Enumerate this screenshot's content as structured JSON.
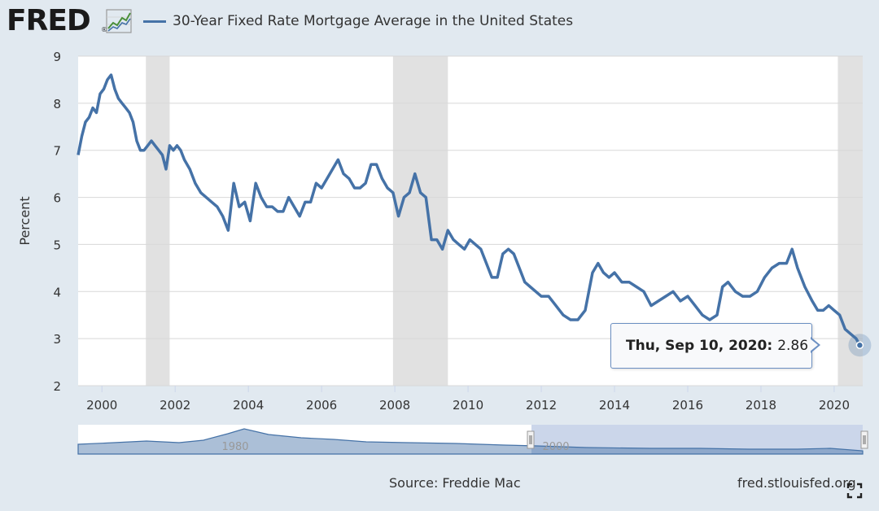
{
  "header": {
    "logo_text": "FRED",
    "logo_reg": "®",
    "legend_label": "30-Year Fixed Rate Mortgage Average in the United States"
  },
  "colors": {
    "series": "#4572a7",
    "recession": "#e1e1e1",
    "background": "#e1e9f0",
    "plot_bg": "#ffffff",
    "navigator_fill": "#b9c8e3"
  },
  "tooltip": {
    "date": "Thu, Sep 10, 2020:",
    "value": "2.86"
  },
  "footer": {
    "source": "Source: Freddie Mac",
    "site": "fred.stlouisfed.org"
  },
  "navigator": {
    "labels": [
      "1980",
      "2000"
    ]
  },
  "chart_data": {
    "type": "line",
    "title": "",
    "xlabel": "",
    "ylabel": "Percent",
    "xlim": [
      1999.35,
      2020.78
    ],
    "ylim": [
      2,
      9
    ],
    "x_ticks": [
      "2000",
      "2002",
      "2004",
      "2006",
      "2008",
      "2010",
      "2012",
      "2014",
      "2016",
      "2018",
      "2020"
    ],
    "y_ticks": [
      "2",
      "3",
      "4",
      "5",
      "6",
      "7",
      "8",
      "9"
    ],
    "grid": "horizontal",
    "recessions": [
      [
        2001.2,
        2001.85
      ],
      [
        2007.95,
        2009.45
      ],
      [
        2020.1,
        2020.78
      ]
    ],
    "series": [
      {
        "name": "30-Year Fixed Rate Mortgage Average in the United States",
        "x": [
          1999.35,
          1999.45,
          1999.55,
          1999.65,
          1999.75,
          1999.85,
          1999.95,
          2000.05,
          2000.15,
          2000.25,
          2000.35,
          2000.45,
          2000.55,
          2000.65,
          2000.75,
          2000.85,
          2000.95,
          2001.05,
          2001.15,
          2001.25,
          2001.35,
          2001.45,
          2001.55,
          2001.65,
          2001.75,
          2001.85,
          2001.95,
          2002.05,
          2002.15,
          2002.25,
          2002.4,
          2002.55,
          2002.7,
          2002.85,
          2003.0,
          2003.15,
          2003.3,
          2003.45,
          2003.6,
          2003.75,
          2003.9,
          2004.05,
          2004.2,
          2004.35,
          2004.5,
          2004.65,
          2004.8,
          2004.95,
          2005.1,
          2005.25,
          2005.4,
          2005.55,
          2005.7,
          2005.85,
          2006.0,
          2006.15,
          2006.3,
          2006.45,
          2006.6,
          2006.75,
          2006.9,
          2007.05,
          2007.2,
          2007.35,
          2007.5,
          2007.65,
          2007.8,
          2007.95,
          2008.1,
          2008.25,
          2008.4,
          2008.55,
          2008.7,
          2008.85,
          2009.0,
          2009.15,
          2009.3,
          2009.45,
          2009.6,
          2009.75,
          2009.9,
          2010.05,
          2010.2,
          2010.35,
          2010.5,
          2010.65,
          2010.8,
          2010.95,
          2011.1,
          2011.25,
          2011.4,
          2011.55,
          2011.7,
          2011.85,
          2012.0,
          2012.2,
          2012.4,
          2012.6,
          2012.8,
          2013.0,
          2013.2,
          2013.4,
          2013.55,
          2013.7,
          2013.85,
          2014.0,
          2014.2,
          2014.4,
          2014.6,
          2014.8,
          2015.0,
          2015.2,
          2015.4,
          2015.6,
          2015.8,
          2016.0,
          2016.2,
          2016.4,
          2016.6,
          2016.8,
          2016.95,
          2017.1,
          2017.3,
          2017.5,
          2017.7,
          2017.9,
          2018.1,
          2018.3,
          2018.5,
          2018.7,
          2018.85,
          2019.0,
          2019.2,
          2019.4,
          2019.55,
          2019.7,
          2019.85,
          2020.0,
          2020.15,
          2020.3,
          2020.45,
          2020.6,
          2020.7
        ],
        "values": [
          6.9,
          7.3,
          7.6,
          7.7,
          7.9,
          7.8,
          8.2,
          8.3,
          8.5,
          8.6,
          8.3,
          8.1,
          8.0,
          7.9,
          7.8,
          7.6,
          7.2,
          7.0,
          7.0,
          7.1,
          7.2,
          7.1,
          7.0,
          6.9,
          6.6,
          7.1,
          7.0,
          7.1,
          7.0,
          6.8,
          6.6,
          6.3,
          6.1,
          6.0,
          5.9,
          5.8,
          5.6,
          5.3,
          6.3,
          5.8,
          5.9,
          5.5,
          6.3,
          6.0,
          5.8,
          5.8,
          5.7,
          5.7,
          6.0,
          5.8,
          5.6,
          5.9,
          5.9,
          6.3,
          6.2,
          6.4,
          6.6,
          6.8,
          6.5,
          6.4,
          6.2,
          6.2,
          6.3,
          6.7,
          6.7,
          6.4,
          6.2,
          6.1,
          5.6,
          6.0,
          6.1,
          6.5,
          6.1,
          6.0,
          5.1,
          5.1,
          4.9,
          5.3,
          5.1,
          5.0,
          4.9,
          5.1,
          5.0,
          4.9,
          4.6,
          4.3,
          4.3,
          4.8,
          4.9,
          4.8,
          4.5,
          4.2,
          4.1,
          4.0,
          3.9,
          3.9,
          3.7,
          3.5,
          3.4,
          3.4,
          3.6,
          4.4,
          4.6,
          4.4,
          4.3,
          4.4,
          4.2,
          4.2,
          4.1,
          4.0,
          3.7,
          3.8,
          3.9,
          4.0,
          3.8,
          3.9,
          3.7,
          3.5,
          3.4,
          3.5,
          4.1,
          4.2,
          4.0,
          3.9,
          3.9,
          4.0,
          4.3,
          4.5,
          4.6,
          4.6,
          4.9,
          4.5,
          4.1,
          3.8,
          3.6,
          3.6,
          3.7,
          3.6,
          3.5,
          3.2,
          3.1,
          3.0,
          2.86
        ]
      }
    ]
  }
}
